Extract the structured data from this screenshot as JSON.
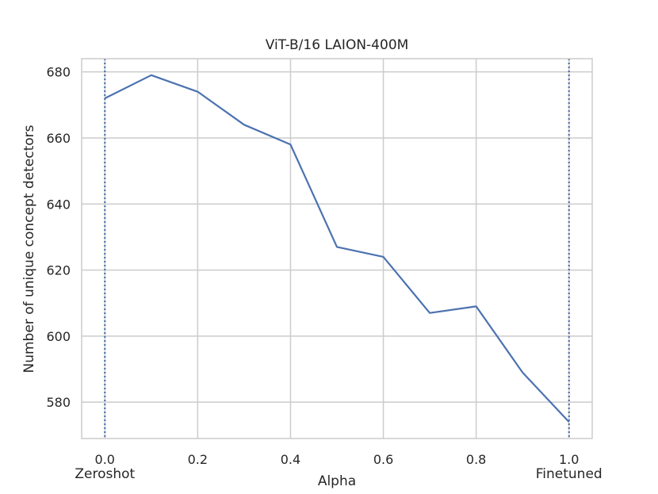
{
  "chart_data": {
    "type": "line",
    "title": "ViT-B/16 LAION-400M",
    "xlabel": "Alpha",
    "ylabel": "Number of unique concept detectors",
    "xlim": [
      -0.05,
      1.05
    ],
    "ylim": [
      569,
      684
    ],
    "x_ticks": [
      "0.0",
      "0.2",
      "0.4",
      "0.6",
      "0.8",
      "1.0"
    ],
    "x_tick_values": [
      0.0,
      0.2,
      0.4,
      0.6,
      0.8,
      1.0
    ],
    "y_ticks": [
      "580",
      "600",
      "620",
      "640",
      "660",
      "680"
    ],
    "y_tick_values": [
      580,
      600,
      620,
      640,
      660,
      680
    ],
    "grid": true,
    "series": [
      {
        "color": "#4c72b0",
        "x": [
          0.0,
          0.1,
          0.2,
          0.3,
          0.4,
          0.5,
          0.6,
          0.7,
          0.8,
          0.9,
          1.0
        ],
        "values": [
          672,
          679,
          674,
          664,
          658,
          627,
          624,
          607,
          609,
          589,
          574
        ]
      }
    ],
    "vertical_markers": [
      {
        "x": 0.0,
        "label": "Zeroshot",
        "style": "dotted",
        "color": "#4c72b0"
      },
      {
        "x": 1.0,
        "label": "Finetuned",
        "style": "dotted",
        "color": "#4c72b0"
      }
    ]
  }
}
